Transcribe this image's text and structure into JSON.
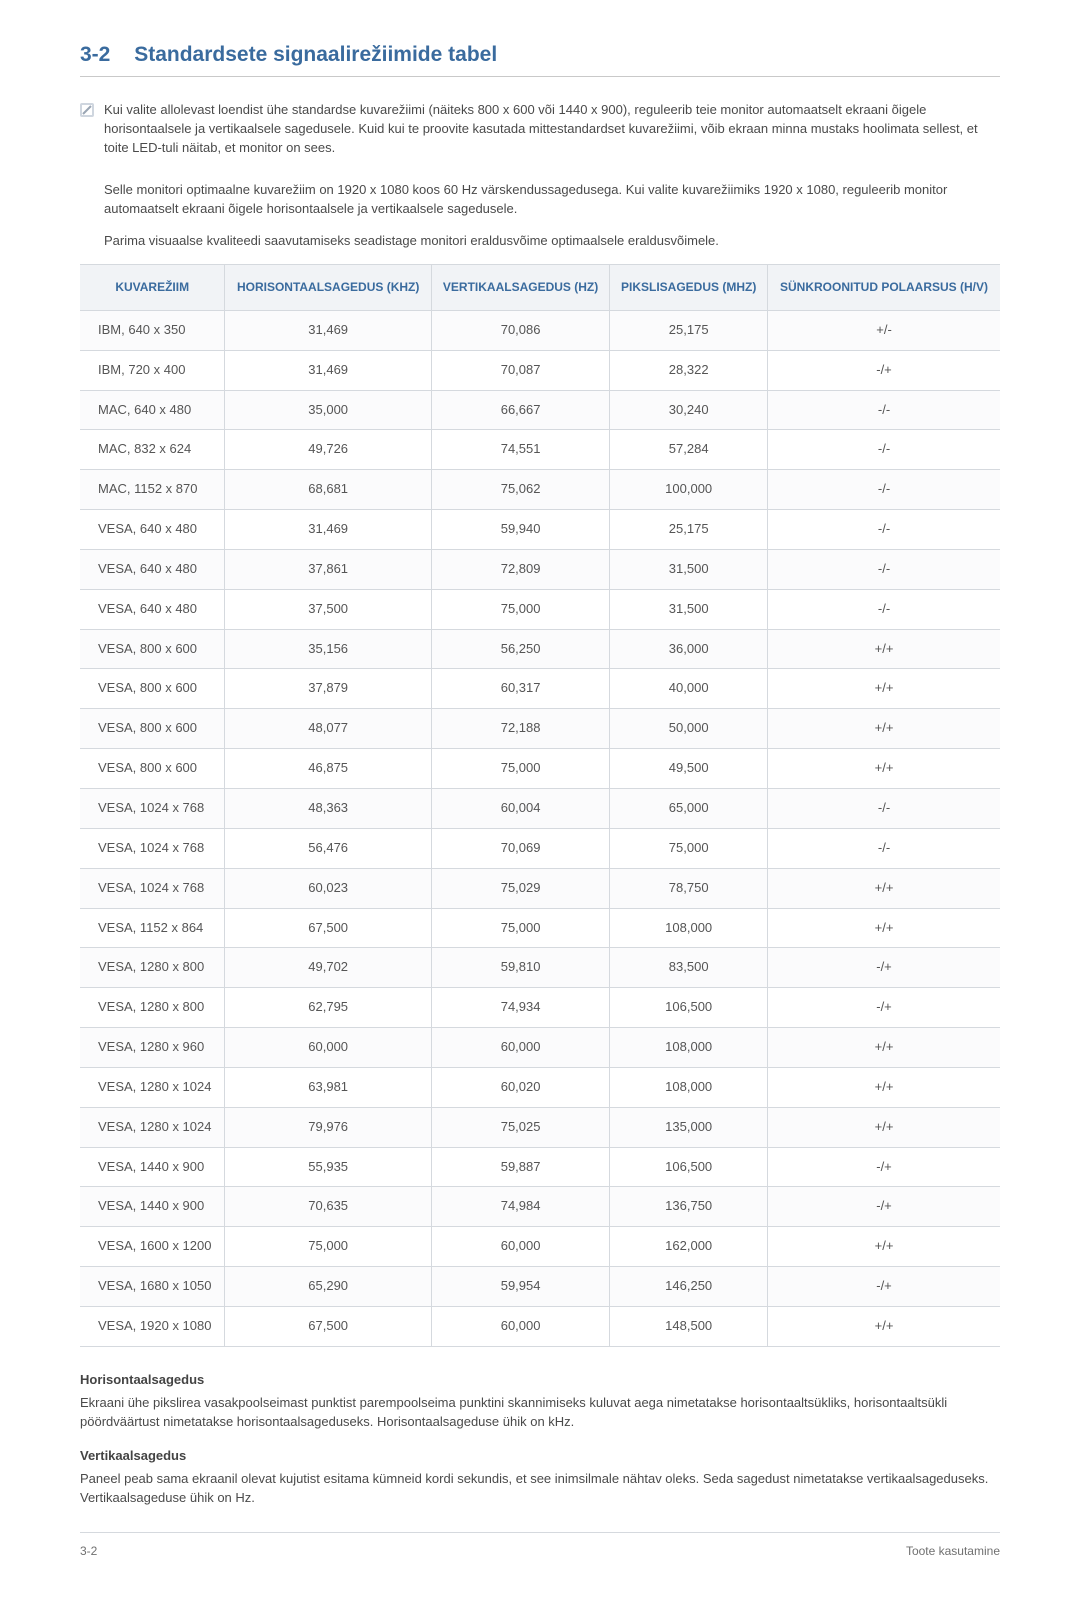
{
  "heading": {
    "number": "3-2",
    "title": "Standardsete signaalirežiimide tabel"
  },
  "note": {
    "p1": "Kui valite allolevast loendist ühe standardse kuvarežiimi (näiteks 800 x 600 või 1440 x 900), reguleerib teie monitor automaatselt ekraani õigele horisontaalsele ja vertikaalsele sagedusele. Kuid kui te proovite kasutada mittestandardset kuvarežiimi, võib ekraan minna mustaks hoolimata sellest, et toite LED-tuli näitab, et monitor on sees.",
    "p2": "Selle monitori optimaalne kuvarežiim on 1920 x 1080 koos 60 Hz värskendussagedusega. Kui valite kuvarežiimiks 1920 x 1080, reguleerib monitor automaatselt ekraani õigele horisontaalsele ja vertikaalsele sagedusele.",
    "p3": "Parima visuaalse kvaliteedi saavutamiseks seadistage monitori eraldusvõime optimaalsele eraldusvõimele."
  },
  "table": {
    "columns": [
      "KUVAREŽIIM",
      "HORISONTAALSAGEDUS (KHZ)",
      "VERTIKAALSAGEDUS (HZ)",
      "PIKSLISAGEDUS (MHZ)",
      "SÜNKROONITUD POLAARSUS (H/V)"
    ],
    "rows": [
      [
        "IBM, 640 x 350",
        "31,469",
        "70,086",
        "25,175",
        "+/-"
      ],
      [
        "IBM, 720 x 400",
        "31,469",
        "70,087",
        "28,322",
        "-/+"
      ],
      [
        "MAC, 640 x 480",
        "35,000",
        "66,667",
        "30,240",
        "-/-"
      ],
      [
        "MAC, 832 x 624",
        "49,726",
        "74,551",
        "57,284",
        "-/-"
      ],
      [
        "MAC, 1152 x 870",
        "68,681",
        "75,062",
        "100,000",
        "-/-"
      ],
      [
        "VESA, 640 x 480",
        "31,469",
        "59,940",
        "25,175",
        "-/-"
      ],
      [
        "VESA, 640 x 480",
        "37,861",
        "72,809",
        "31,500",
        "-/-"
      ],
      [
        "VESA, 640 x 480",
        "37,500",
        "75,000",
        "31,500",
        "-/-"
      ],
      [
        "VESA, 800 x 600",
        "35,156",
        "56,250",
        "36,000",
        "+/+"
      ],
      [
        "VESA, 800 x 600",
        "37,879",
        "60,317",
        "40,000",
        "+/+"
      ],
      [
        "VESA, 800 x 600",
        "48,077",
        "72,188",
        "50,000",
        "+/+"
      ],
      [
        "VESA, 800 x 600",
        "46,875",
        "75,000",
        "49,500",
        "+/+"
      ],
      [
        "VESA, 1024 x 768",
        "48,363",
        "60,004",
        "65,000",
        "-/-"
      ],
      [
        "VESA, 1024 x 768",
        "56,476",
        "70,069",
        "75,000",
        "-/-"
      ],
      [
        "VESA, 1024 x 768",
        "60,023",
        "75,029",
        "78,750",
        "+/+"
      ],
      [
        "VESA, 1152 x 864",
        "67,500",
        "75,000",
        "108,000",
        "+/+"
      ],
      [
        "VESA, 1280 x 800",
        "49,702",
        "59,810",
        "83,500",
        "-/+"
      ],
      [
        "VESA, 1280 x 800",
        "62,795",
        "74,934",
        "106,500",
        "-/+"
      ],
      [
        "VESA, 1280 x 960",
        "60,000",
        "60,000",
        "108,000",
        "+/+"
      ],
      [
        "VESA, 1280 x 1024",
        "63,981",
        "60,020",
        "108,000",
        "+/+"
      ],
      [
        "VESA, 1280 x 1024",
        "79,976",
        "75,025",
        "135,000",
        "+/+"
      ],
      [
        "VESA, 1440 x 900",
        "55,935",
        "59,887",
        "106,500",
        "-/+"
      ],
      [
        "VESA, 1440 x 900",
        "70,635",
        "74,984",
        "136,750",
        "-/+"
      ],
      [
        "VESA, 1600 x 1200",
        "75,000",
        "60,000",
        "162,000",
        "+/+"
      ],
      [
        "VESA, 1680 x 1050",
        "65,290",
        "59,954",
        "146,250",
        "-/+"
      ],
      [
        "VESA, 1920 x 1080",
        "67,500",
        "60,000",
        "148,500",
        "+/+"
      ]
    ]
  },
  "hfreq": {
    "title": "Horisontaalsagedus",
    "body": "Ekraani ühe pikslirea vasakpoolseimast punktist parempoolseima punktini skannimiseks kuluvat aega nimetatakse horisontaaltsükliks, horisontaaltsükli pöördväärtust nimetatakse horisontaalsageduseks. Horisontaalsageduse ühik on kHz."
  },
  "vfreq": {
    "title": "Vertikaalsagedus",
    "body": "Paneel peab sama ekraanil olevat kujutist esitama kümneid kordi sekundis, et see inimsilmale nähtav oleks. Seda sagedust nimetatakse vertikaalsageduseks. Vertikaalsageduse ühik on Hz."
  },
  "footer": {
    "left": "3-2",
    "right": "Toote kasutamine"
  }
}
